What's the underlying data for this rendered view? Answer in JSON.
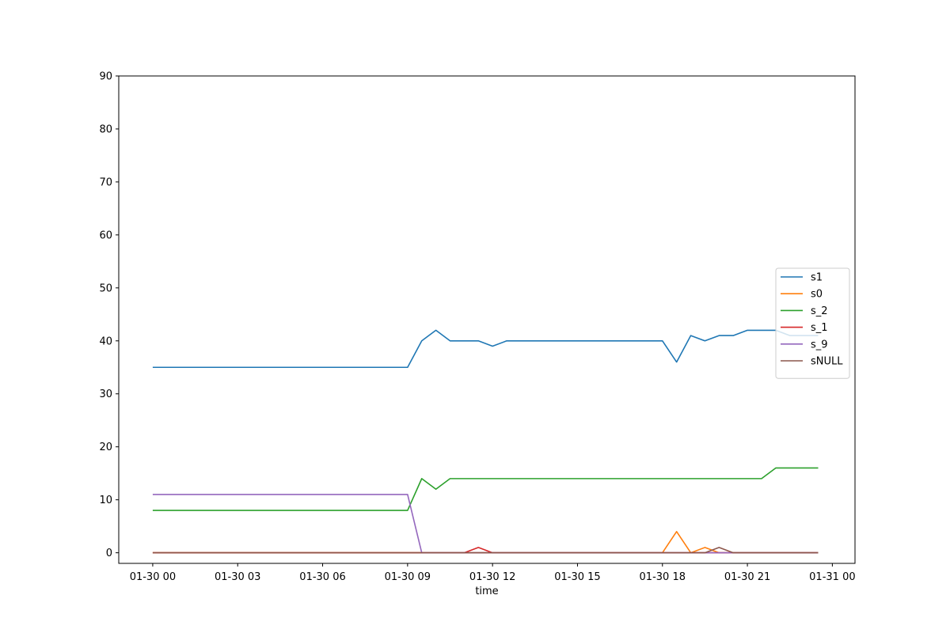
{
  "chart_data": {
    "type": "line",
    "title": "",
    "xlabel": "time",
    "ylabel": "",
    "x": [
      "01-30 00:00",
      "01-30 00:30",
      "01-30 01:00",
      "01-30 01:30",
      "01-30 02:00",
      "01-30 02:30",
      "01-30 03:00",
      "01-30 03:30",
      "01-30 04:00",
      "01-30 04:30",
      "01-30 05:00",
      "01-30 05:30",
      "01-30 06:00",
      "01-30 06:30",
      "01-30 07:00",
      "01-30 07:30",
      "01-30 08:00",
      "01-30 08:30",
      "01-30 09:00",
      "01-30 09:30",
      "01-30 10:00",
      "01-30 10:30",
      "01-30 11:00",
      "01-30 11:30",
      "01-30 12:00",
      "01-30 12:30",
      "01-30 13:00",
      "01-30 13:30",
      "01-30 14:00",
      "01-30 14:30",
      "01-30 15:00",
      "01-30 15:30",
      "01-30 16:00",
      "01-30 16:30",
      "01-30 17:00",
      "01-30 17:30",
      "01-30 18:00",
      "01-30 18:30",
      "01-30 19:00",
      "01-30 19:30",
      "01-30 20:00",
      "01-30 20:30",
      "01-30 21:00",
      "01-30 21:30",
      "01-30 22:00",
      "01-30 22:30",
      "01-30 23:00",
      "01-30 23:30"
    ],
    "xlim": [
      "01-29 22:48",
      "01-31 00:48"
    ],
    "xticks": [
      "01-30 00",
      "01-30 03",
      "01-30 06",
      "01-30 09",
      "01-30 12",
      "01-30 15",
      "01-30 18",
      "01-30 21",
      "01-31 00"
    ],
    "ylim": [
      -2,
      90
    ],
    "yticks": [
      0,
      10,
      20,
      30,
      40,
      50,
      60,
      70,
      80,
      90
    ],
    "grid": false,
    "legend_position": "center-right",
    "series": [
      {
        "name": "s1",
        "color": "#1f77b4",
        "values": [
          35,
          35,
          35,
          35,
          35,
          35,
          35,
          35,
          35,
          35,
          35,
          35,
          35,
          35,
          35,
          35,
          35,
          35,
          35,
          40,
          42,
          40,
          40,
          40,
          39,
          40,
          40,
          40,
          40,
          40,
          40,
          40,
          40,
          40,
          40,
          40,
          40,
          36,
          41,
          40,
          41,
          41,
          42,
          42,
          42,
          41,
          41,
          41
        ]
      },
      {
        "name": "s0",
        "color": "#ff7f0e",
        "values": [
          0,
          0,
          0,
          0,
          0,
          0,
          0,
          0,
          0,
          0,
          0,
          0,
          0,
          0,
          0,
          0,
          0,
          0,
          0,
          0,
          0,
          0,
          0,
          0,
          0,
          0,
          0,
          0,
          0,
          0,
          0,
          0,
          0,
          0,
          0,
          0,
          0,
          4,
          0,
          1,
          0,
          0,
          0,
          0,
          0,
          0,
          0,
          0
        ]
      },
      {
        "name": "s_2",
        "color": "#2ca02c",
        "values": [
          8,
          8,
          8,
          8,
          8,
          8,
          8,
          8,
          8,
          8,
          8,
          8,
          8,
          8,
          8,
          8,
          8,
          8,
          8,
          14,
          12,
          14,
          14,
          14,
          14,
          14,
          14,
          14,
          14,
          14,
          14,
          14,
          14,
          14,
          14,
          14,
          14,
          14,
          14,
          14,
          14,
          14,
          14,
          14,
          16,
          16,
          16,
          16
        ]
      },
      {
        "name": "s_1",
        "color": "#d62728",
        "values": [
          0,
          0,
          0,
          0,
          0,
          0,
          0,
          0,
          0,
          0,
          0,
          0,
          0,
          0,
          0,
          0,
          0,
          0,
          0,
          0,
          0,
          0,
          0,
          1,
          0,
          0,
          0,
          0,
          0,
          0,
          0,
          0,
          0,
          0,
          0,
          0,
          0,
          0,
          0,
          0,
          0,
          0,
          0,
          0,
          0,
          0,
          0,
          0
        ]
      },
      {
        "name": "s_9",
        "color": "#9467bd",
        "values": [
          11,
          11,
          11,
          11,
          11,
          11,
          11,
          11,
          11,
          11,
          11,
          11,
          11,
          11,
          11,
          11,
          11,
          11,
          11,
          0,
          0,
          0,
          0,
          0,
          0,
          0,
          0,
          0,
          0,
          0,
          0,
          0,
          0,
          0,
          0,
          0,
          0,
          0,
          0,
          0,
          0,
          0,
          0,
          0,
          0,
          0,
          0,
          0
        ]
      },
      {
        "name": "sNULL",
        "color": "#8c564b",
        "values": [
          0,
          0,
          0,
          0,
          0,
          0,
          0,
          0,
          0,
          0,
          0,
          0,
          0,
          0,
          0,
          0,
          0,
          0,
          0,
          0,
          0,
          0,
          0,
          0,
          0,
          0,
          0,
          0,
          0,
          0,
          0,
          0,
          0,
          0,
          0,
          0,
          0,
          0,
          0,
          0,
          1,
          0,
          0,
          0,
          0,
          0,
          0,
          0
        ]
      }
    ]
  }
}
